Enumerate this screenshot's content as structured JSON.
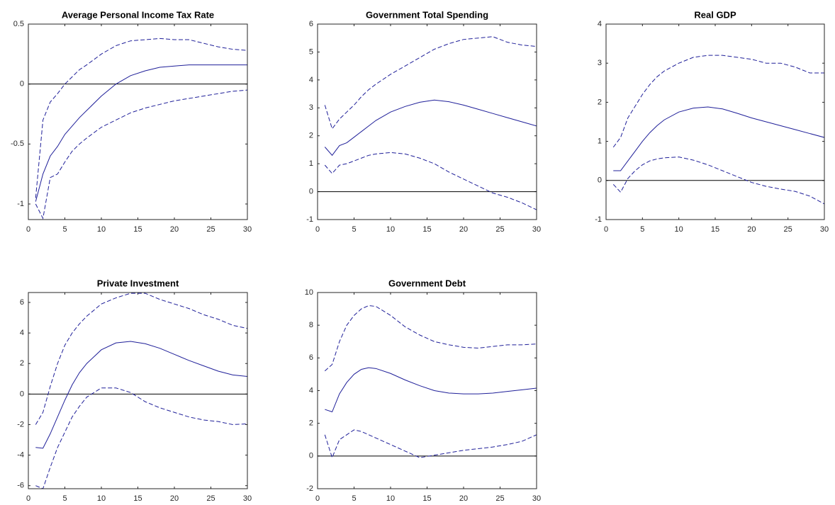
{
  "chart_data": [
    {
      "type": "line",
      "title": "Average Personal Income Tax Rate",
      "x": [
        1,
        2,
        3,
        4,
        5,
        6,
        7,
        8,
        10,
        12,
        14,
        16,
        18,
        20,
        22,
        24,
        26,
        28,
        30
      ],
      "series": [
        {
          "color": "#1f1f99",
          "style": "dashed",
          "values": [
            -0.95,
            -0.3,
            -0.15,
            -0.08,
            0.0,
            0.06,
            0.12,
            0.16,
            0.25,
            0.32,
            0.36,
            0.37,
            0.38,
            0.37,
            0.37,
            0.34,
            0.31,
            0.29,
            0.28
          ]
        },
        {
          "color": "#1f1f99",
          "style": "solid",
          "values": [
            -0.98,
            -0.75,
            -0.6,
            -0.52,
            -0.42,
            -0.35,
            -0.28,
            -0.22,
            -0.1,
            0,
            0.07,
            0.11,
            0.14,
            0.15,
            0.16,
            0.16,
            0.16,
            0.16,
            0.16
          ]
        },
        {
          "color": "#1f1f99",
          "style": "dashed",
          "values": [
            -1.0,
            -1.12,
            -0.78,
            -0.75,
            -0.65,
            -0.56,
            -0.5,
            -0.45,
            -0.36,
            -0.3,
            -0.24,
            -0.2,
            -0.17,
            -0.14,
            -0.12,
            -0.1,
            -0.08,
            -0.06,
            -0.05
          ]
        }
      ],
      "reference_line": 0,
      "xlim": [
        0,
        30
      ],
      "xticks": [
        0,
        5,
        10,
        15,
        20,
        25,
        30
      ],
      "ylim": [
        -1.13,
        0.5
      ],
      "yticks": [
        -1,
        -0.5,
        0,
        0.5
      ]
    },
    {
      "type": "line",
      "title": "Government Total Spending",
      "x": [
        1,
        2,
        3,
        4,
        5,
        6,
        7,
        8,
        10,
        12,
        14,
        16,
        18,
        20,
        22,
        24,
        26,
        28,
        30
      ],
      "series": [
        {
          "color": "#1f1f99",
          "style": "dashed",
          "values": [
            3.1,
            2.25,
            2.6,
            2.85,
            3.1,
            3.4,
            3.65,
            3.85,
            4.2,
            4.5,
            4.8,
            5.1,
            5.3,
            5.45,
            5.5,
            5.55,
            5.35,
            5.25,
            5.2
          ]
        },
        {
          "color": "#1f1f99",
          "style": "solid",
          "values": [
            1.6,
            1.3,
            1.65,
            1.75,
            1.95,
            2.15,
            2.35,
            2.55,
            2.85,
            3.05,
            3.2,
            3.28,
            3.22,
            3.1,
            2.95,
            2.8,
            2.65,
            2.5,
            2.35
          ]
        },
        {
          "color": "#1f1f99",
          "style": "dashed",
          "values": [
            0.95,
            0.65,
            0.95,
            1.0,
            1.1,
            1.2,
            1.3,
            1.35,
            1.4,
            1.35,
            1.2,
            1.0,
            0.7,
            0.45,
            0.2,
            -0.05,
            -0.2,
            -0.4,
            -0.65
          ]
        }
      ],
      "reference_line": 0,
      "xlim": [
        0,
        30
      ],
      "xticks": [
        0,
        5,
        10,
        15,
        20,
        25,
        30
      ],
      "ylim": [
        -1,
        6
      ],
      "yticks": [
        -1,
        0,
        1,
        2,
        3,
        4,
        5,
        6
      ]
    },
    {
      "type": "line",
      "title": "Real GDP",
      "x": [
        1,
        2,
        3,
        4,
        5,
        6,
        7,
        8,
        10,
        12,
        14,
        16,
        18,
        20,
        22,
        24,
        26,
        28,
        30
      ],
      "series": [
        {
          "color": "#1f1f99",
          "style": "dashed",
          "values": [
            0.85,
            1.1,
            1.6,
            1.9,
            2.2,
            2.45,
            2.65,
            2.8,
            3.0,
            3.15,
            3.2,
            3.2,
            3.15,
            3.1,
            3.0,
            3.0,
            2.9,
            2.75,
            2.75
          ]
        },
        {
          "color": "#1f1f99",
          "style": "solid",
          "values": [
            0.25,
            0.25,
            0.5,
            0.75,
            1.0,
            1.22,
            1.4,
            1.55,
            1.75,
            1.85,
            1.88,
            1.83,
            1.72,
            1.6,
            1.5,
            1.4,
            1.3,
            1.2,
            1.1
          ]
        },
        {
          "color": "#1f1f99",
          "style": "dashed",
          "values": [
            -0.1,
            -0.3,
            0.05,
            0.25,
            0.4,
            0.5,
            0.55,
            0.58,
            0.6,
            0.52,
            0.4,
            0.25,
            0.1,
            -0.05,
            -0.15,
            -0.22,
            -0.28,
            -0.4,
            -0.6
          ]
        }
      ],
      "reference_line": 0,
      "xlim": [
        0,
        30
      ],
      "xticks": [
        0,
        5,
        10,
        15,
        20,
        25,
        30
      ],
      "ylim": [
        -1,
        4
      ],
      "yticks": [
        -1,
        0,
        1,
        2,
        3,
        4
      ]
    },
    {
      "type": "line",
      "title": "Private Investment",
      "x": [
        1,
        2,
        3,
        4,
        5,
        6,
        7,
        8,
        10,
        12,
        14,
        16,
        18,
        20,
        22,
        24,
        26,
        28,
        30
      ],
      "series": [
        {
          "color": "#1f1f99",
          "style": "dashed",
          "values": [
            -2.0,
            -1.2,
            0.5,
            2.0,
            3.2,
            4.0,
            4.6,
            5.1,
            5.9,
            6.3,
            6.6,
            6.6,
            6.2,
            5.9,
            5.6,
            5.2,
            4.9,
            4.5,
            4.3
          ]
        },
        {
          "color": "#1f1f99",
          "style": "solid",
          "values": [
            -3.5,
            -3.55,
            -2.6,
            -1.5,
            -0.4,
            0.6,
            1.4,
            2.0,
            2.9,
            3.35,
            3.45,
            3.3,
            3.0,
            2.6,
            2.2,
            1.85,
            1.5,
            1.25,
            1.15
          ]
        },
        {
          "color": "#1f1f99",
          "style": "dashed",
          "values": [
            -6.0,
            -6.2,
            -4.8,
            -3.5,
            -2.5,
            -1.5,
            -0.8,
            -0.2,
            0.4,
            0.4,
            0.1,
            -0.5,
            -0.9,
            -1.2,
            -1.5,
            -1.7,
            -1.8,
            -2.0,
            -1.95
          ]
        }
      ],
      "reference_line": 0,
      "xlim": [
        0,
        30
      ],
      "xticks": [
        0,
        5,
        10,
        15,
        20,
        25,
        30
      ],
      "ylim": [
        -6.2,
        6.65
      ],
      "yticks": [
        -6,
        -4,
        -2,
        0,
        2,
        4,
        6
      ]
    },
    {
      "type": "line",
      "title": "Government Debt",
      "x": [
        1,
        2,
        3,
        4,
        5,
        6,
        7,
        8,
        10,
        12,
        14,
        16,
        18,
        20,
        22,
        24,
        26,
        28,
        30
      ],
      "series": [
        {
          "color": "#1f1f99",
          "style": "dashed",
          "values": [
            5.2,
            5.6,
            7.0,
            8.0,
            8.6,
            9.0,
            9.2,
            9.15,
            8.6,
            7.9,
            7.4,
            7.0,
            6.8,
            6.65,
            6.6,
            6.7,
            6.8,
            6.8,
            6.85
          ]
        },
        {
          "color": "#1f1f99",
          "style": "solid",
          "values": [
            2.85,
            2.7,
            3.8,
            4.5,
            5.0,
            5.3,
            5.4,
            5.35,
            5.05,
            4.65,
            4.3,
            4.0,
            3.85,
            3.8,
            3.8,
            3.85,
            3.95,
            4.05,
            4.15
          ]
        },
        {
          "color": "#1f1f99",
          "style": "dashed",
          "values": [
            1.3,
            -0.1,
            1.0,
            1.3,
            1.6,
            1.5,
            1.3,
            1.1,
            0.7,
            0.3,
            -0.1,
            0.05,
            0.2,
            0.35,
            0.45,
            0.55,
            0.7,
            0.9,
            1.3
          ]
        }
      ],
      "reference_line": 0,
      "xlim": [
        0,
        30
      ],
      "xticks": [
        0,
        5,
        10,
        15,
        20,
        25,
        30
      ],
      "ylim": [
        -2,
        10
      ],
      "yticks": [
        -2,
        0,
        2,
        4,
        6,
        8,
        10
      ]
    }
  ]
}
